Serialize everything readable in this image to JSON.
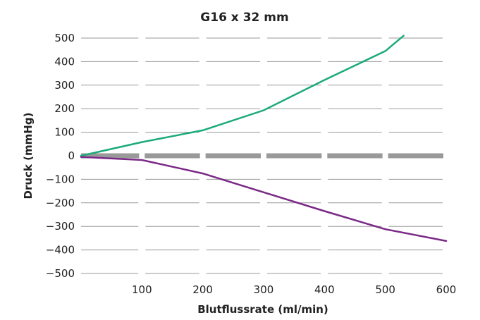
{
  "chart_data": {
    "type": "line",
    "title": "G16 x 32 mm",
    "xlabel": "Blutflussrate (ml/min)",
    "ylabel": "Druck (mmHg)",
    "xlim": [
      0,
      600
    ],
    "ylim": [
      -500,
      500
    ],
    "x_ticks": [
      100,
      200,
      300,
      400,
      500,
      600
    ],
    "y_ticks": [
      500,
      400,
      300,
      200,
      100,
      0,
      -100,
      -200,
      -300,
      -400,
      -500
    ],
    "x_tick_labels": [
      "100",
      "200",
      "300",
      "400",
      "500",
      "600"
    ],
    "y_tick_labels": [
      "500",
      "400",
      "300",
      "200",
      "100",
      "0",
      "−100",
      "−200",
      "−300",
      "−400",
      "−500"
    ],
    "grid": true,
    "series": [
      {
        "color": "#1aaa7c",
        "points": [
          [
            0,
            0
          ],
          [
            100,
            58
          ],
          [
            200,
            108
          ],
          [
            300,
            193
          ],
          [
            400,
            322
          ],
          [
            500,
            445
          ],
          [
            530,
            510
          ]
        ]
      },
      {
        "color": "#7a2a86",
        "points": [
          [
            0,
            -5
          ],
          [
            100,
            -18
          ],
          [
            200,
            -75
          ],
          [
            300,
            -155
          ],
          [
            400,
            -235
          ],
          [
            500,
            -312
          ],
          [
            600,
            -362
          ]
        ]
      }
    ],
    "zero_line_color": "#999999"
  }
}
